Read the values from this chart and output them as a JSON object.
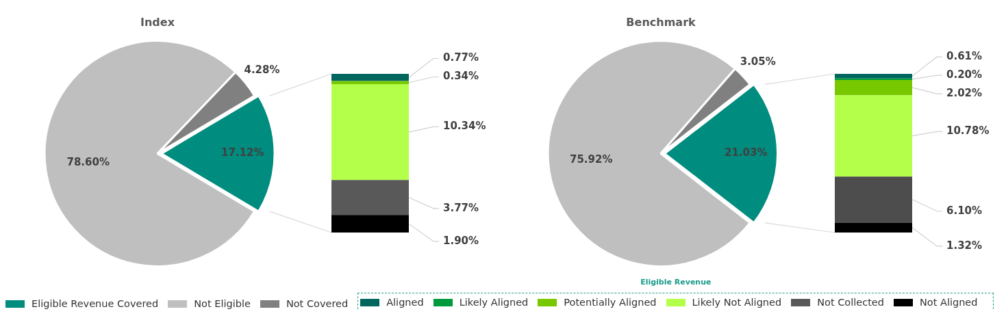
{
  "chart_data": [
    {
      "type": "pie",
      "title": "Index",
      "categories": [
        "Eligible Revenue Covered",
        "Not Eligible",
        "Not Covered"
      ],
      "values": [
        17.12,
        78.6,
        4.28
      ],
      "value_labels": [
        "17.12%",
        "78.60%",
        "4.28%"
      ],
      "colors": [
        "#008c7e",
        "#bfbfbf",
        "#808080"
      ],
      "legend": "bottom"
    },
    {
      "type": "bar",
      "stacked": true,
      "categories": [
        null
      ],
      "legend": "bottom",
      "legend_title": "Eligible Revenue",
      "tick_labels": false,
      "series": [
        {
          "name": "Not Aligned",
          "color": "#000000",
          "values": [
            1.9
          ],
          "value_labels": [
            "1.90%"
          ]
        },
        {
          "name": "Not Collected",
          "color": "#595959",
          "values": [
            3.77
          ],
          "value_labels": [
            "3.77%"
          ]
        },
        {
          "name": "Likely Not Aligned",
          "color": "#b3ff4a",
          "values": [
            10.34
          ],
          "value_labels": [
            "10.34%"
          ]
        },
        {
          "name": "Potentially Aligned",
          "color": "#78c800",
          "values": [
            0.34
          ],
          "value_labels": [
            "0.34%"
          ]
        },
        {
          "name": "Aligned",
          "color": "#00665e",
          "values": [
            0.77
          ],
          "value_labels": [
            "0.77%"
          ]
        }
      ]
    },
    {
      "type": "pie",
      "title": "Benchmark",
      "categories": [
        null,
        null,
        null
      ],
      "values": [
        21.03,
        75.92,
        3.05
      ],
      "value_labels": [
        "21.03%",
        "75.92%",
        "3.05%"
      ],
      "colors": [
        "#008c7e",
        "#bfbfbf",
        "#808080"
      ]
    },
    {
      "type": "bar",
      "stacked": true,
      "categories": [
        null
      ],
      "legend": "bottom",
      "tick_labels": false,
      "series": [
        {
          "name": "Not Aligned",
          "color": "#000000",
          "values": [
            1.32
          ],
          "value_labels": [
            "1.32%"
          ]
        },
        {
          "name": "Not Collected",
          "color": "#4d4d4d",
          "values": [
            6.1
          ],
          "value_labels": [
            "6.10%"
          ]
        },
        {
          "name": "Likely Not Aligned",
          "color": "#b3ff4a",
          "values": [
            10.78
          ],
          "value_labels": [
            "10.78%"
          ]
        },
        {
          "name": "Potentially Aligned",
          "color": "#78c800",
          "values": [
            2.02
          ],
          "value_labels": [
            "2.02%"
          ]
        },
        {
          "name": "Likely Aligned",
          "color": "#009a3e",
          "values": [
            0.2
          ],
          "value_labels": [
            "0.20%"
          ]
        },
        {
          "name": "Aligned",
          "color": "#00665e",
          "values": [
            0.61
          ],
          "value_labels": [
            "0.61%"
          ]
        }
      ]
    }
  ]
}
